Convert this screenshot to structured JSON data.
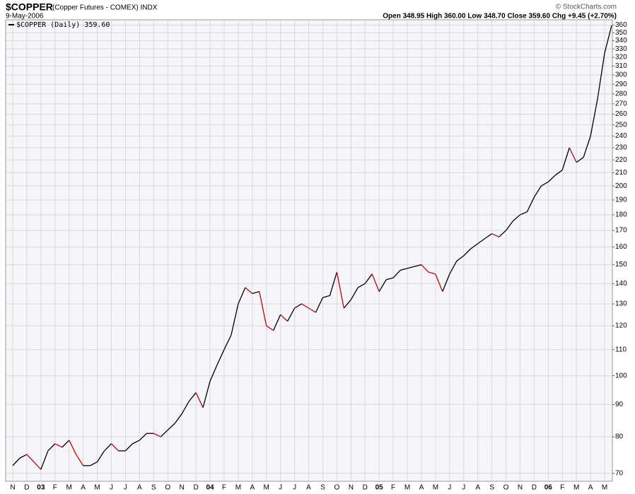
{
  "chart_data": {
    "type": "line",
    "title": "$COPPER",
    "subtitle": "(Copper Futures - COMEX) INDX",
    "date": "9-May-2006",
    "quote": "Open 348.95 High 360.00 Low 348.70 Close 359.60 Chg +9.45 (+2.70%)",
    "credit": "© StockCharts.com",
    "log_scale": true,
    "grid": true,
    "legend": "top-left",
    "categories": [
      "N",
      null,
      "D",
      null,
      "03",
      null,
      "F",
      null,
      "M",
      null,
      "A",
      null,
      "M",
      null,
      "J",
      null,
      "J",
      null,
      "A",
      null,
      "S",
      null,
      "O",
      null,
      "N",
      null,
      "D",
      null,
      "04",
      null,
      "F",
      null,
      "M",
      null,
      "A",
      null,
      "M",
      null,
      "J",
      null,
      "J",
      null,
      "A",
      null,
      "S",
      null,
      "O",
      null,
      "N",
      null,
      "D",
      null,
      "05",
      null,
      "F",
      null,
      "M",
      null,
      "A",
      null,
      "M",
      null,
      "J",
      null,
      "J",
      null,
      "A",
      null,
      "S",
      null,
      "O",
      null,
      "N",
      null,
      "D",
      null,
      "06",
      null,
      "F",
      null,
      "M",
      null,
      "A",
      null,
      "M",
      null
    ],
    "series": [
      {
        "name": "$COPPER (Daily) 359.60",
        "color": "#000000",
        "down_color": "#cc0000",
        "values": [
          72,
          74,
          75,
          73,
          71,
          76,
          78,
          77,
          79,
          75,
          72,
          72,
          73,
          76,
          78,
          76,
          76,
          78,
          79,
          81,
          81,
          80,
          82,
          84,
          87,
          91,
          94,
          89,
          98,
          104,
          110,
          116,
          130,
          138,
          135,
          136,
          120,
          118,
          125,
          122,
          128,
          130,
          128,
          126,
          133,
          134,
          146,
          128,
          132,
          138,
          140,
          145,
          136,
          142,
          143,
          147,
          148,
          149,
          150,
          146,
          145,
          136,
          145,
          152,
          155,
          159,
          162,
          165,
          168,
          166,
          170,
          176,
          180,
          182,
          192,
          200,
          203,
          208,
          212,
          230,
          218,
          222,
          240,
          275,
          325,
          359.6
        ]
      }
    ],
    "ylim": [
      68,
      367
    ],
    "yticks": [
      70,
      80,
      90,
      100,
      110,
      120,
      130,
      140,
      150,
      160,
      170,
      180,
      190,
      200,
      210,
      220,
      230,
      240,
      250,
      260,
      270,
      280,
      290,
      300,
      310,
      320,
      330,
      340,
      350,
      360
    ]
  }
}
